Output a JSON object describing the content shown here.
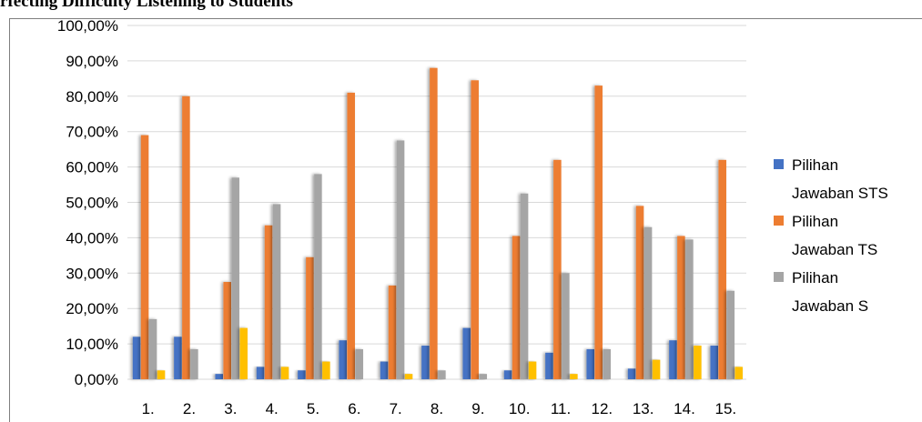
{
  "page": {
    "title": "rfecting Difficulty Listening to Students"
  },
  "chart_data": {
    "type": "bar",
    "categories": [
      "1.",
      "2.",
      "3.",
      "4.",
      "5.",
      "6.",
      "7.",
      "8.",
      "9.",
      "10.",
      "11.",
      "12.",
      "13.",
      "14.",
      "15."
    ],
    "ylim": [
      0,
      100
    ],
    "yticks": [
      "0,00%",
      "10,00%",
      "20,00%",
      "30,00%",
      "40,00%",
      "50,00%",
      "60,00%",
      "70,00%",
      "80,00%",
      "90,00%",
      "100,00%"
    ],
    "grid": true,
    "legend_position": "right",
    "series": [
      {
        "name": "Pilihan Jawaban STS",
        "color": "#4472C4",
        "values": [
          12,
          12,
          1.5,
          3.5,
          2.5,
          11,
          5,
          9.5,
          14.5,
          2.5,
          7.5,
          8.5,
          3,
          11,
          9.5
        ]
      },
      {
        "name": "Pilihan Jawaban TS",
        "color": "#ED7D31",
        "values": [
          69,
          80,
          27.5,
          43.5,
          34.5,
          81,
          26.5,
          88,
          84.5,
          40.5,
          62,
          83,
          49,
          40.5,
          62
        ]
      },
      {
        "name": "Pilihan Jawaban S",
        "color": "#A5A5A5",
        "values": [
          17,
          8.5,
          57,
          49.5,
          58,
          8.5,
          67.5,
          2.5,
          1.5,
          52.5,
          30,
          8.5,
          43,
          39.5,
          25
        ]
      },
      {
        "color": "#FFC000",
        "values": [
          2.5,
          0,
          14.5,
          3.5,
          5,
          0,
          1.5,
          0,
          0,
          5,
          1.5,
          0,
          5.5,
          9.5,
          3.5
        ]
      }
    ],
    "legend": [
      {
        "line1": "Pilihan",
        "line2": "Jawaban STS",
        "color": "#4472C4"
      },
      {
        "line1": "Pilihan",
        "line2": "Jawaban TS",
        "color": "#ED7D31"
      },
      {
        "line1": "Pilihan",
        "line2": "Jawaban S",
        "color": "#A5A5A5"
      }
    ]
  }
}
